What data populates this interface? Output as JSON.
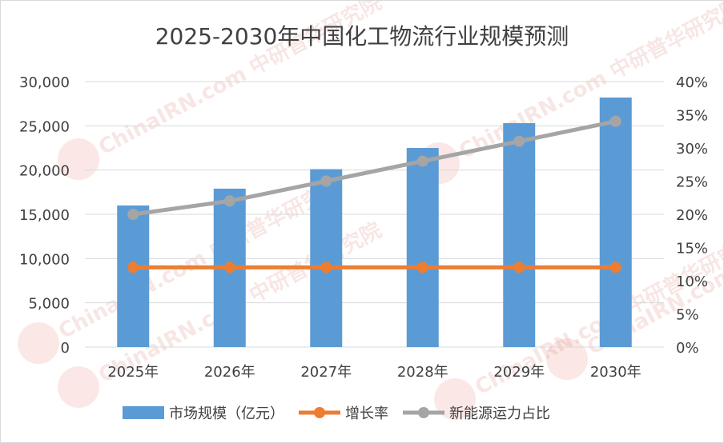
{
  "chart_data": {
    "type": "bar",
    "title": "2025-2030年中国化工物流行业规模预测",
    "categories": [
      "2025年",
      "2026年",
      "2027年",
      "2028年",
      "2029年",
      "2030年"
    ],
    "y_left": {
      "min": 0,
      "max": 30000,
      "step": 5000,
      "tick_labels": [
        "0",
        "5,000",
        "10,000",
        "15,000",
        "20,000",
        "25,000",
        "30,000"
      ]
    },
    "y_right": {
      "min": 0,
      "max": 40,
      "step": 5,
      "tick_labels": [
        "0%",
        "5%",
        "10%",
        "15%",
        "20%",
        "25%",
        "30%",
        "35%",
        "40%"
      ]
    },
    "series": [
      {
        "name": "市场规模（亿元）",
        "type": "bar",
        "axis": "left",
        "color": "#5b9bd5",
        "values": [
          16000,
          17900,
          20100,
          22500,
          25300,
          28200
        ]
      },
      {
        "name": "增长率",
        "type": "line",
        "axis": "right",
        "color": "#ed7d31",
        "values": [
          12,
          12,
          12,
          12,
          12,
          12
        ]
      },
      {
        "name": "新能源运力占比",
        "type": "line",
        "axis": "right",
        "color": "#a5a5a5",
        "values": [
          20,
          22,
          25,
          28,
          31,
          34
        ]
      }
    ],
    "grid": true,
    "legend_position": "bottom"
  },
  "watermark": "ChinaIRN.com 中研普华研究院"
}
